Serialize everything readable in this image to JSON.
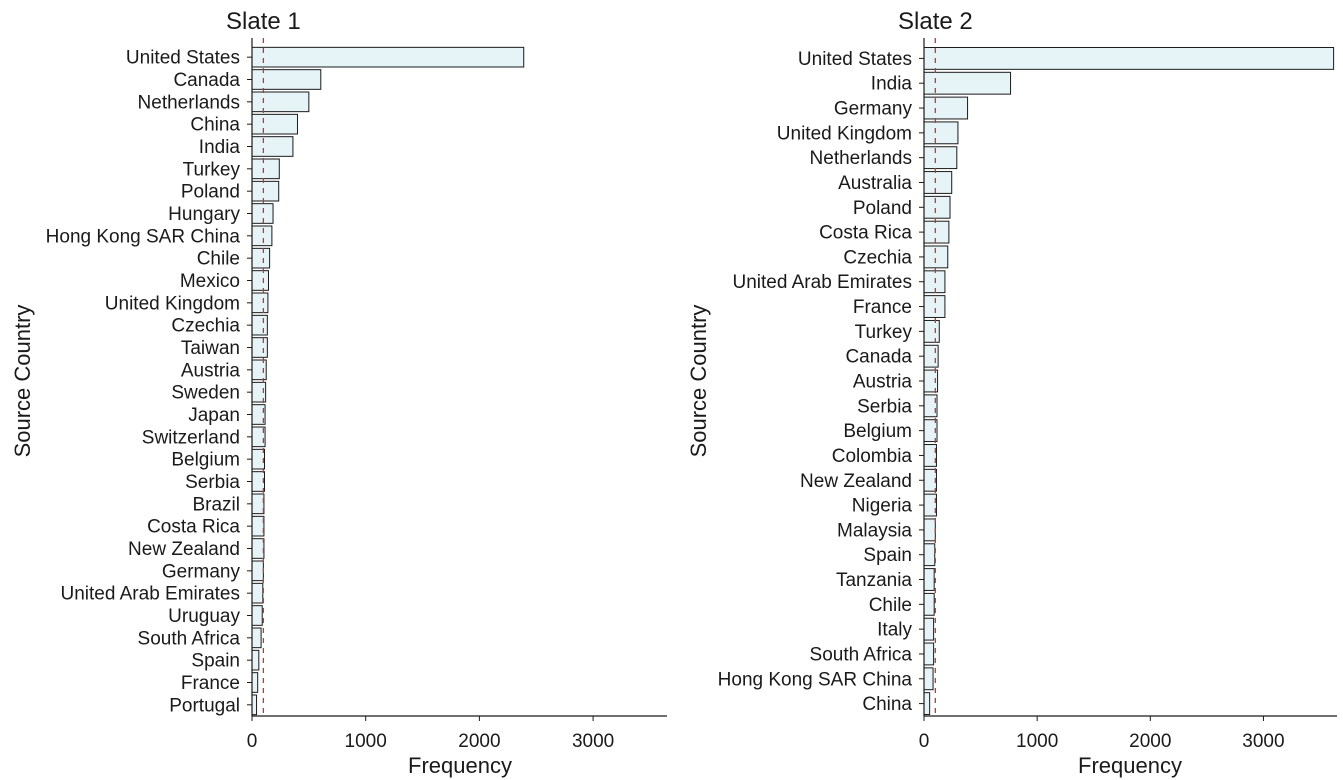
{
  "chart_data": [
    {
      "type": "bar",
      "orientation": "horizontal",
      "title": "Slate 1",
      "xlabel": "Frequency",
      "ylabel": "Source Country",
      "xlim": [
        0,
        3650
      ],
      "xticks": [
        0,
        1000,
        2000,
        3000
      ],
      "reference_line": {
        "value": 100,
        "style": "dashed",
        "color": "#c0392b"
      },
      "bar_fill": "#e6f4f8",
      "bar_stroke": "#1a1a1a",
      "grid": false,
      "categories": [
        "United States",
        "Canada",
        "Netherlands",
        "China",
        "India",
        "Turkey",
        "Poland",
        "Hungary",
        "Hong Kong SAR China",
        "Chile",
        "Mexico",
        "United Kingdom",
        "Czechia",
        "Taiwan",
        "Austria",
        "Sweden",
        "Japan",
        "Switzerland",
        "Belgium",
        "Serbia",
        "Brazil",
        "Costa Rica",
        "New Zealand",
        "Germany",
        "United Arab Emirates",
        "Uruguay",
        "South Africa",
        "Spain",
        "France",
        "Portugal"
      ],
      "values": [
        2390,
        605,
        500,
        400,
        360,
        240,
        235,
        185,
        175,
        155,
        145,
        140,
        135,
        135,
        125,
        120,
        115,
        115,
        110,
        110,
        105,
        105,
        105,
        100,
        95,
        90,
        80,
        60,
        50,
        40
      ]
    },
    {
      "type": "bar",
      "orientation": "horizontal",
      "title": "Slate 2",
      "xlabel": "Frequency",
      "ylabel": "Source Country",
      "xlim": [
        0,
        3650
      ],
      "xticks": [
        0,
        1000,
        2000,
        3000
      ],
      "reference_line": {
        "value": 100,
        "style": "dashed",
        "color": "#c0392b"
      },
      "bar_fill": "#e6f4f8",
      "bar_stroke": "#1a1a1a",
      "grid": false,
      "categories": [
        "United States",
        "India",
        "Germany",
        "United Kingdom",
        "Netherlands",
        "Australia",
        "Poland",
        "Costa Rica",
        "Czechia",
        "United Arab Emirates",
        "France",
        "Turkey",
        "Canada",
        "Austria",
        "Serbia",
        "Belgium",
        "Colombia",
        "New Zealand",
        "Nigeria",
        "Malaysia",
        "Spain",
        "Tanzania",
        "Chile",
        "Italy",
        "South Africa",
        "Hong Kong SAR China",
        "China"
      ],
      "values": [
        3620,
        765,
        385,
        300,
        290,
        245,
        230,
        220,
        210,
        185,
        185,
        135,
        125,
        120,
        115,
        115,
        110,
        110,
        110,
        100,
        95,
        90,
        90,
        85,
        85,
        80,
        50
      ]
    }
  ]
}
